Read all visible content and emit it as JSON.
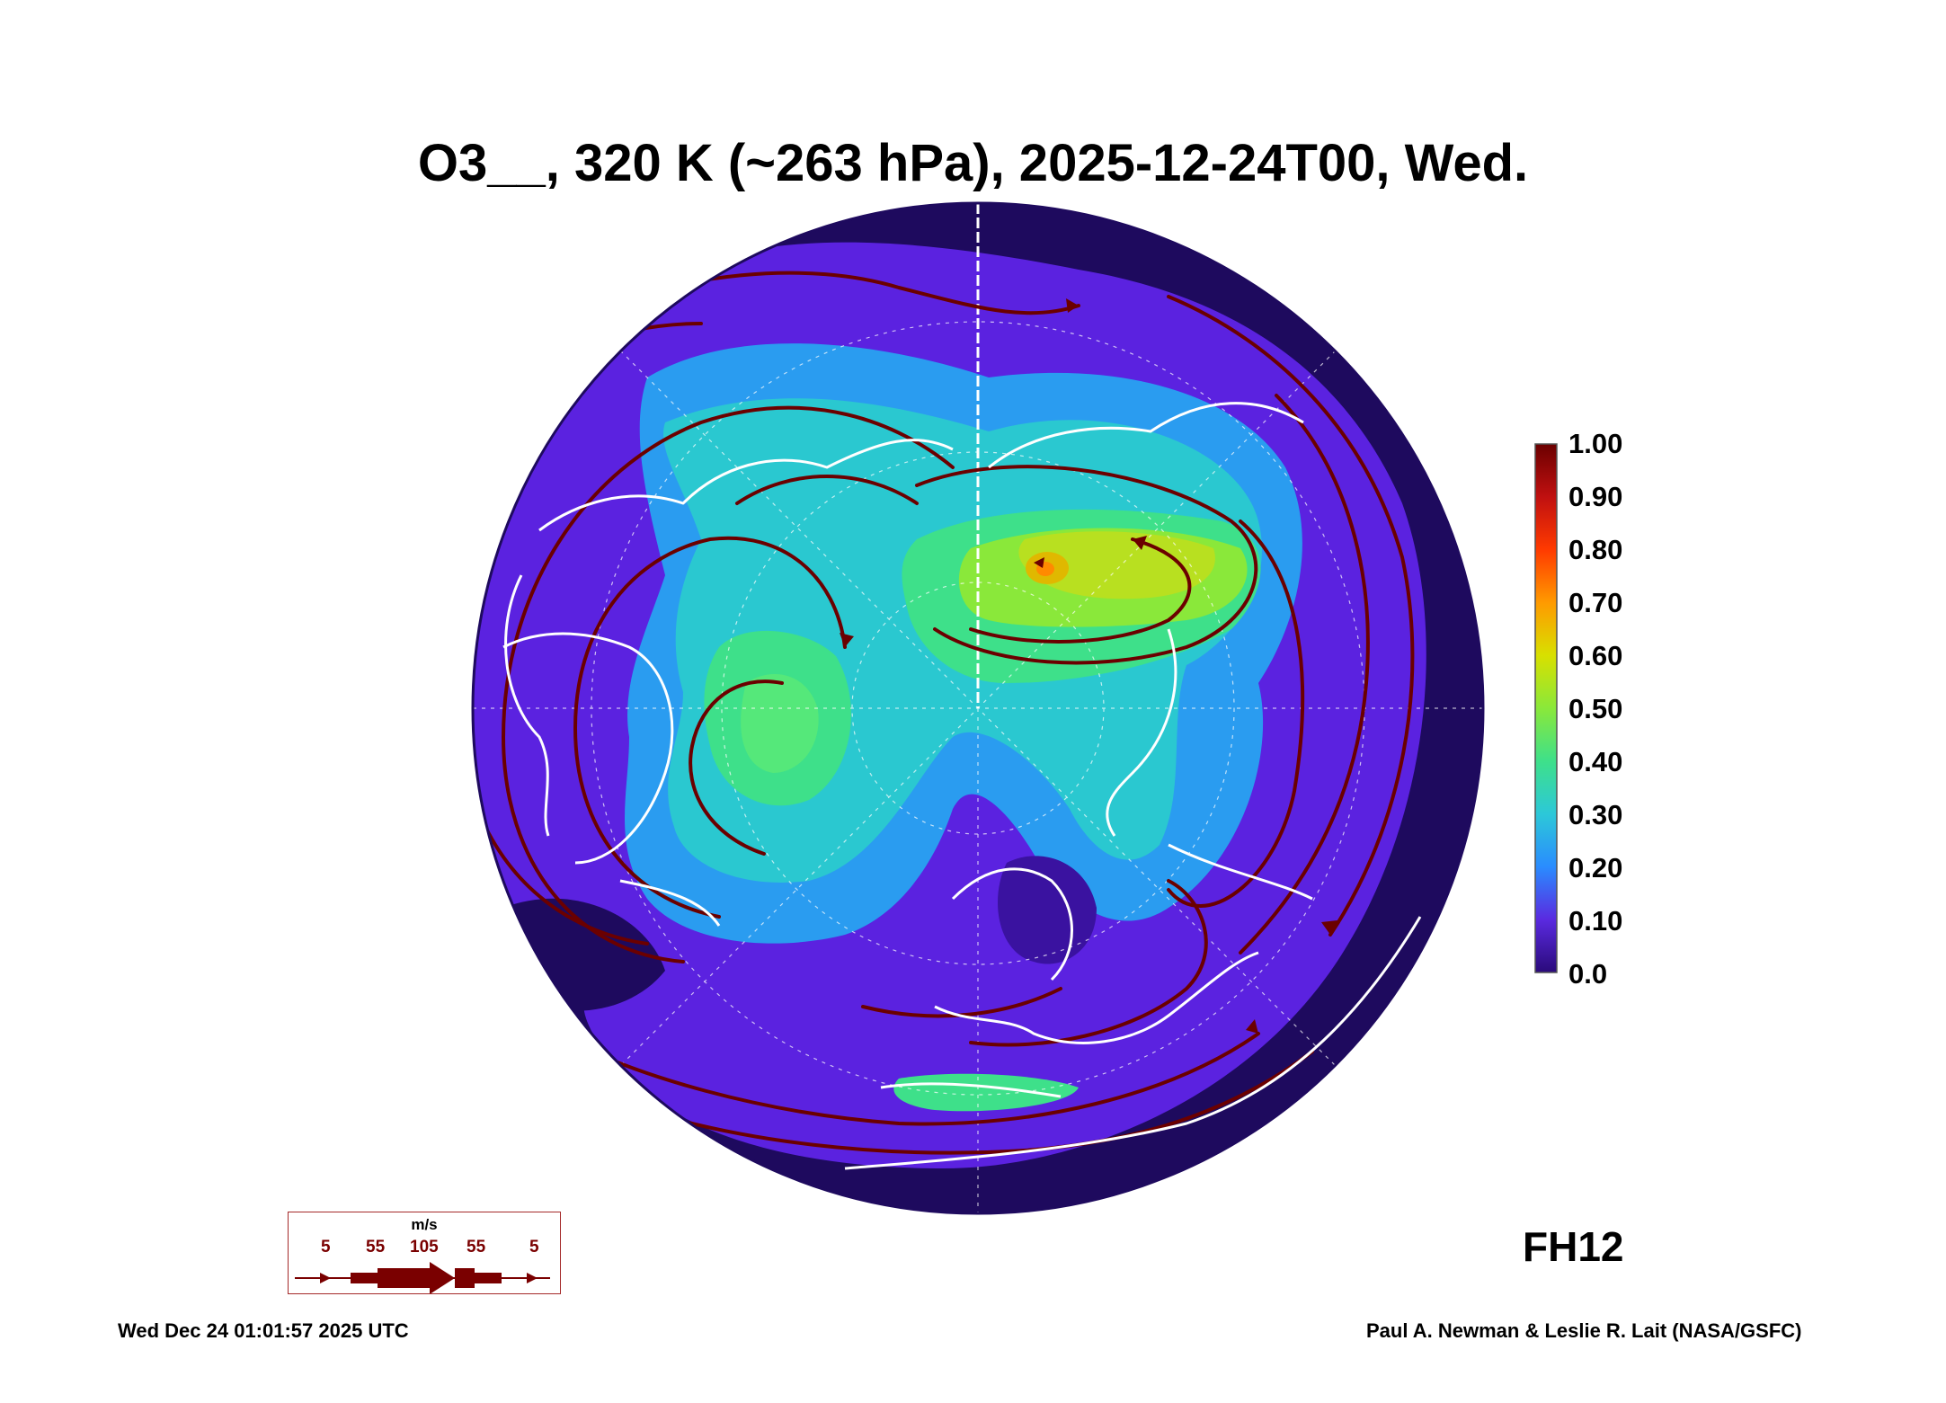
{
  "title": "O3__, 320 K (~263 hPa), 2025-12-24T00, Wed.",
  "colorbar": {
    "labels": [
      "1.00",
      "0.90",
      "0.80",
      "0.70",
      "0.60",
      "0.50",
      "0.40",
      "0.30",
      "0.20",
      "0.10",
      "0.0"
    ],
    "colors": [
      "#6b0000",
      "#c01010",
      "#ff3a00",
      "#ff9a00",
      "#d8e000",
      "#8ae83a",
      "#3ee08a",
      "#2cc8d8",
      "#2a8cff",
      "#5a2ae0",
      "#2a0a7a"
    ]
  },
  "forecast_hour": "FH12",
  "wind_legend": {
    "unit": "m/s",
    "values": [
      "5",
      "55",
      "105",
      "55",
      "5"
    ]
  },
  "footer": {
    "timestamp": "Wed Dec 24 01:01:57 2025 UTC",
    "credit": "Paul A. Newman & Leslie R. Lait (NASA/GSFC)"
  },
  "map": {
    "projection": "north polar stereographic",
    "background_color": "#1e0a5e",
    "coastline_color": "#ffffff",
    "streamline_color": "#6b0000"
  }
}
